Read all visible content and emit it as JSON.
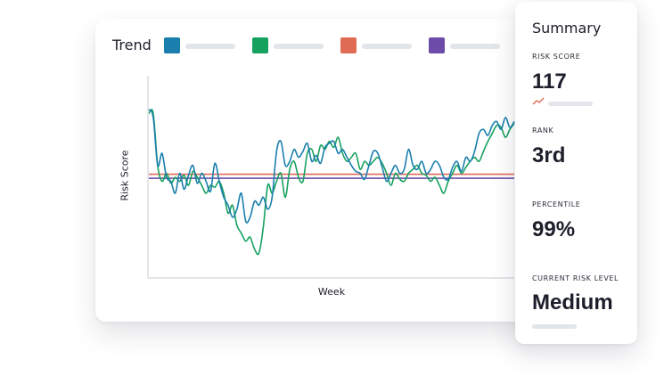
{
  "trend_card": {
    "title": "Trend",
    "legend": [
      {
        "color": "#1a7fad"
      },
      {
        "color": "#17a15f"
      },
      {
        "color": "#e06b55"
      },
      {
        "color": "#6d4ba8"
      }
    ],
    "y_axis_label": "Risk Score",
    "x_axis_label": "Week"
  },
  "chart_data": {
    "type": "line",
    "xlabel": "Week",
    "ylabel": "Risk Score",
    "ylim": [
      0,
      100
    ],
    "grid": false,
    "series": [
      {
        "color": "#1a7fad",
        "values": [
          84,
          80,
          56,
          62,
          50,
          48,
          42,
          52,
          44,
          51,
          56,
          47,
          52,
          48,
          43,
          57,
          48,
          40,
          36,
          30,
          34,
          42,
          28,
          30,
          38,
          36,
          40,
          34,
          40,
          63,
          68,
          56,
          58,
          64,
          60,
          63,
          67,
          58,
          61,
          57,
          65,
          67,
          68,
          62,
          64,
          60,
          56,
          53,
          52,
          49,
          56,
          63,
          62,
          55,
          48,
          52,
          56,
          52,
          54,
          64,
          56,
          54,
          58,
          52,
          54,
          58,
          56,
          50,
          49,
          55,
          58,
          53,
          60,
          58,
          63,
          72,
          74,
          71,
          76,
          78,
          74,
          80,
          75,
          78
        ]
      },
      {
        "color": "#17a15f",
        "values": [
          82,
          82,
          56,
          48,
          52,
          47,
          50,
          48,
          51,
          46,
          53,
          50,
          46,
          42,
          46,
          45,
          48,
          42,
          32,
          36,
          26,
          22,
          18,
          20,
          14,
          12,
          25,
          46,
          42,
          48,
          52,
          40,
          54,
          58,
          50,
          48,
          62,
          64,
          58,
          66,
          64,
          68,
          65,
          70,
          62,
          58,
          60,
          62,
          54,
          58,
          56,
          58,
          60,
          57,
          52,
          46,
          52,
          49,
          48,
          52,
          54,
          56,
          52,
          51,
          48,
          50,
          46,
          42,
          48,
          52,
          56,
          52,
          55,
          58,
          60,
          58,
          63,
          68,
          72,
          76,
          75,
          70,
          74,
          77
        ]
      },
      {
        "color": "#e06b55",
        "values": [
          51.5,
          51.5
        ]
      },
      {
        "color": "#6d4ba8",
        "values": [
          49.5,
          49.5
        ]
      }
    ]
  },
  "summary": {
    "title": "Summary",
    "risk_score_label": "RISK SCORE",
    "risk_score_value": "117",
    "rank_label": "RANK",
    "rank_value": "3rd",
    "percentile_label": "PERCENTILE",
    "percentile_value": "99%",
    "risk_level_label": "CURRENT RISK LEVEL",
    "risk_level_value": "Medium",
    "trend_icon": "trend-up-icon"
  }
}
